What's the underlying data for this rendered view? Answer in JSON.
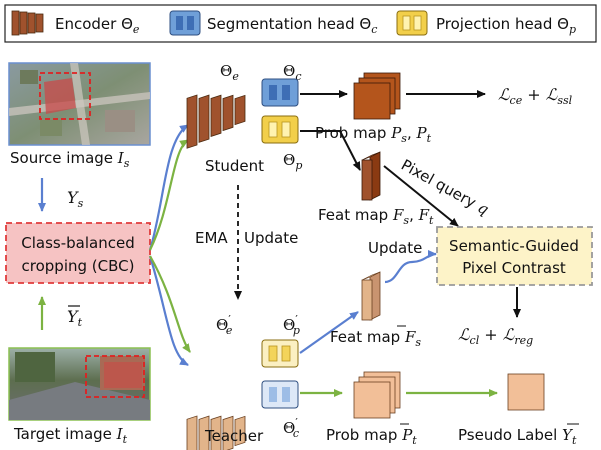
{
  "legend": {
    "encoder_label": "Encoder Θ",
    "encoder_sub": "e",
    "seg_head_label": "Segmentation head Θ",
    "seg_head_sub": "c",
    "proj_head_label": "Projection head Θ",
    "proj_head_sub": "p"
  },
  "source": {
    "caption": "Source image ",
    "caption_var": "I",
    "caption_sub": "s",
    "label_y": "Y",
    "label_y_sub": "s"
  },
  "target": {
    "caption": "Target image ",
    "caption_var": "I",
    "caption_sub": "t",
    "label_y": "Y",
    "label_y_sub": "t"
  },
  "cbc": {
    "line1": "Class-balanced",
    "line2": "cropping (CBC)"
  },
  "student": {
    "name": "Student",
    "theta": "Θ",
    "theta_sub": "e",
    "seg_theta": "Θ",
    "seg_theta_sub": "c",
    "proj_theta": "Θ",
    "proj_theta_sub": "p"
  },
  "teacher": {
    "name": "Teacher",
    "theta": "Θ",
    "theta_sub": "e",
    "theta_prime": "′",
    "seg_theta": "Θ",
    "seg_theta_sub": "c",
    "seg_prime": "′",
    "proj_theta": "Θ",
    "proj_theta_sub": "p",
    "proj_prime": "′"
  },
  "ema": {
    "left": "EMA",
    "right": "Update"
  },
  "prob_map_student": {
    "text": "Prob map ",
    "v1": "P",
    "s1": "s",
    "v2": "P",
    "s2": "t"
  },
  "feat_map_student": {
    "text": "Feat map ",
    "v1": "F",
    "s1": "s",
    "v2": "F",
    "s2": "t"
  },
  "feat_map_teacher": {
    "text": "Feat map ",
    "v": "F",
    "s": "s"
  },
  "prob_map_teacher": {
    "text": "Prob map ",
    "v": "P",
    "s": "t"
  },
  "pseudo_label": {
    "text": "Pseudo Label ",
    "v": "Y",
    "s": "t"
  },
  "pixel_query": {
    "text": "Pixel query ",
    "v": "q"
  },
  "update": {
    "text": "Update"
  },
  "sgpc": {
    "line1": "Semantic-Guided",
    "line2": "Pixel Contrast"
  },
  "loss_top": {
    "l1": "ℒ",
    "s1": "ce",
    "plus": " + ",
    "l2": "ℒ",
    "s2": "ssl"
  },
  "loss_bottom": {
    "l1": "ℒ",
    "s1": "cl",
    "plus": " + ",
    "l2": "ℒ",
    "s2": "reg"
  },
  "colors": {
    "encoder": "#a0522d",
    "encoder_light": "#e2b48a",
    "seg_head": "#6f9fd8",
    "proj_head": "#f2cf4a",
    "cbc_fill": "#f6c3c3",
    "cbc_border": "#e03b3b",
    "sgpc_fill": "#fdf3c8",
    "sgpc_border": "#999999",
    "blue_arrow": "#5a7fd0",
    "green_arrow": "#7cb342",
    "source_border": "#6a8fcf",
    "target_border": "#8cc152"
  }
}
